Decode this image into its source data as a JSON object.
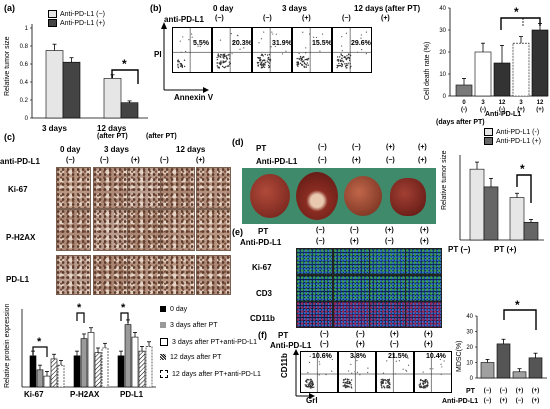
{
  "panel_a": {
    "letter": "(a)",
    "ylabel": "Relative tumor size",
    "legend": [
      "Anti-PD-L1 (−)",
      "Anti-PD-L1 (+)"
    ],
    "xticks": [
      "3 days",
      "12 days"
    ],
    "xsub": "(after PT)",
    "star": "*",
    "yticks": [
      "0",
      "0.2",
      "0.4",
      "0.6",
      "0.8",
      "1"
    ],
    "colors": {
      "minus": "#e6e6e6",
      "plus": "#444444"
    },
    "chart_data": {
      "type": "bar",
      "categories": [
        "3 days",
        "12 days"
      ],
      "series": [
        {
          "name": "Anti-PD-L1 (−)",
          "values": [
            0.75,
            0.44
          ],
          "err": [
            0.07,
            0.04
          ]
        },
        {
          "name": "Anti-PD-L1 (+)",
          "values": [
            0.62,
            0.17
          ],
          "err": [
            0.05,
            0.02
          ]
        }
      ],
      "ylim": [
        0,
        1
      ]
    }
  },
  "panel_b": {
    "letter": "(b)",
    "drug": "anti-PD-L1",
    "groups": [
      {
        "label": "0 day",
        "sub": [
          "(−)"
        ]
      },
      {
        "label": "3 days",
        "sub": [
          "(−)",
          "(+)"
        ]
      },
      {
        "label": "12 days",
        "sub": [
          "(−)",
          "(+)"
        ],
        "note": "(after PT)"
      }
    ],
    "percents": [
      "5.5%",
      "20.3%",
      "31.9%",
      "15.5%",
      "29.6%"
    ],
    "yaxis": "PI",
    "xaxis": "Annexin V"
  },
  "panel_b_chart": {
    "ylabel": "Cell death rate (%)",
    "yticks": [
      "0",
      "10",
      "20",
      "30",
      "40"
    ],
    "xticks": [
      "0",
      "3",
      "12",
      "3",
      "12"
    ],
    "antirow": [
      "(-)",
      "(-)",
      "(-)",
      "(+)",
      "(+)"
    ],
    "antilabel": "Anti-PD-L1",
    "daysnote": "(days after PT)",
    "star": "*",
    "chart_data": {
      "type": "bar",
      "categories": [
        "0",
        "3",
        "12",
        "3",
        "12"
      ],
      "values": [
        5,
        20,
        15,
        24,
        30
      ],
      "err": [
        3,
        4,
        8,
        3,
        3
      ],
      "ylim": [
        0,
        40
      ]
    }
  },
  "panel_c": {
    "letter": "(c)",
    "drug": "anti-PD-L1",
    "cols": [
      "0 day",
      "3 days",
      "12 days"
    ],
    "sub": [
      "(−)",
      "(−)",
      "(+)",
      "(−)",
      "(+)"
    ],
    "rows": [
      "Ki-67",
      "P-H2AX",
      "PD-L1"
    ],
    "afterpt": "(after PT)"
  },
  "panel_c_chart": {
    "ylabel": "Relative protein expression",
    "groups": [
      "Ki-67",
      "P-H2AX",
      "PD-L1"
    ],
    "legend": [
      "0 day",
      "3 days after PT",
      "3 days after PT+anti-PD-L1",
      "12 days after PT",
      "12 days after PT+anti-PD-L1"
    ],
    "stars": [
      "*",
      "*",
      "*"
    ],
    "chart_data": {
      "type": "bar",
      "categories": [
        "Ki-67",
        "P-H2AX",
        "PD-L1"
      ],
      "series": [
        {
          "name": "0 day",
          "values": [
            1.0,
            1.0,
            1.0
          ]
        },
        {
          "name": "3 days after PT",
          "values": [
            0.55,
            1.55,
            2.0
          ]
        },
        {
          "name": "3 days after PT+anti-PD-L1",
          "values": [
            0.35,
            1.75,
            1.6
          ]
        },
        {
          "name": "12 days after PT",
          "values": [
            0.9,
            1.1,
            1.15
          ]
        },
        {
          "name": "12 days after PT+anti-PD-L1",
          "values": [
            0.7,
            1.25,
            1.3
          ]
        }
      ],
      "ylim": [
        0,
        2.5
      ]
    }
  },
  "panel_d": {
    "letter": "(d)",
    "pt_label": "PT",
    "anti_label": "Anti-PD-L1",
    "pt": [
      "(−)",
      "(−)",
      "(+)",
      "(+)"
    ],
    "anti": [
      "(−)",
      "(+)",
      "(−)",
      "(+)"
    ]
  },
  "panel_d_chart": {
    "ylabel": "Relative tumor size",
    "legend": [
      "Anti-PD-L1 (-)",
      "Anti-PD-L1 (+)"
    ],
    "xticks": [
      "PT (−)",
      "PT (+)"
    ],
    "star": "*",
    "chart_data": {
      "type": "bar",
      "categories": [
        "PT (−)",
        "PT (+)"
      ],
      "series": [
        {
          "name": "Anti-PD-L1 (-)",
          "values": [
            1.0,
            0.6
          ],
          "err": [
            0.1,
            0.06
          ]
        },
        {
          "name": "Anti-PD-L1 (+)",
          "values": [
            0.75,
            0.25
          ],
          "err": [
            0.12,
            0.04
          ]
        }
      ],
      "ylim": [
        0,
        1.2
      ]
    }
  },
  "panel_e": {
    "letter": "(e)",
    "pt_label": "PT",
    "anti_label": "Anti-PD-L1",
    "pt": [
      "(−)",
      "(−)",
      "(+)",
      "(+)"
    ],
    "anti": [
      "(−)",
      "(+)",
      "(−)",
      "(+)"
    ],
    "rows": [
      "Ki-67",
      "CD3",
      "CD11b"
    ]
  },
  "panel_f": {
    "letter": "(f)",
    "pt_label": "PT",
    "anti_label": "Anti-PD-L1",
    "pt": [
      "(−)",
      "(−)",
      "(+)",
      "(+)"
    ],
    "anti": [
      "(−)",
      "(+)",
      "(−)",
      "(+)"
    ],
    "percents": [
      "10.6%",
      "3.8%",
      "21.5%",
      "10.4%"
    ],
    "yaxis": "CD11b",
    "xaxis": "Grl"
  },
  "panel_f_chart": {
    "ylabel": "MDSC(%)",
    "yticks": [
      "0",
      "10",
      "20",
      "30",
      "40"
    ],
    "pt_label": "PT",
    "anti_label": "Anti-PD-L1",
    "pt": [
      "(−)",
      "(−)",
      "(+)",
      "(+)"
    ],
    "anti": [
      "(−)",
      "(+)",
      "(−)",
      "(+)"
    ],
    "star": "*",
    "chart_data": {
      "type": "bar",
      "categories": [
        "PT(−)/Anti(−)",
        "PT(−)/Anti(+)",
        "PT(+)/Anti(−)",
        "PT(+)/Anti(+)"
      ],
      "values": [
        10,
        22,
        4,
        13
      ],
      "err": [
        2,
        3,
        2,
        3
      ],
      "ylim": [
        0,
        40
      ]
    }
  }
}
